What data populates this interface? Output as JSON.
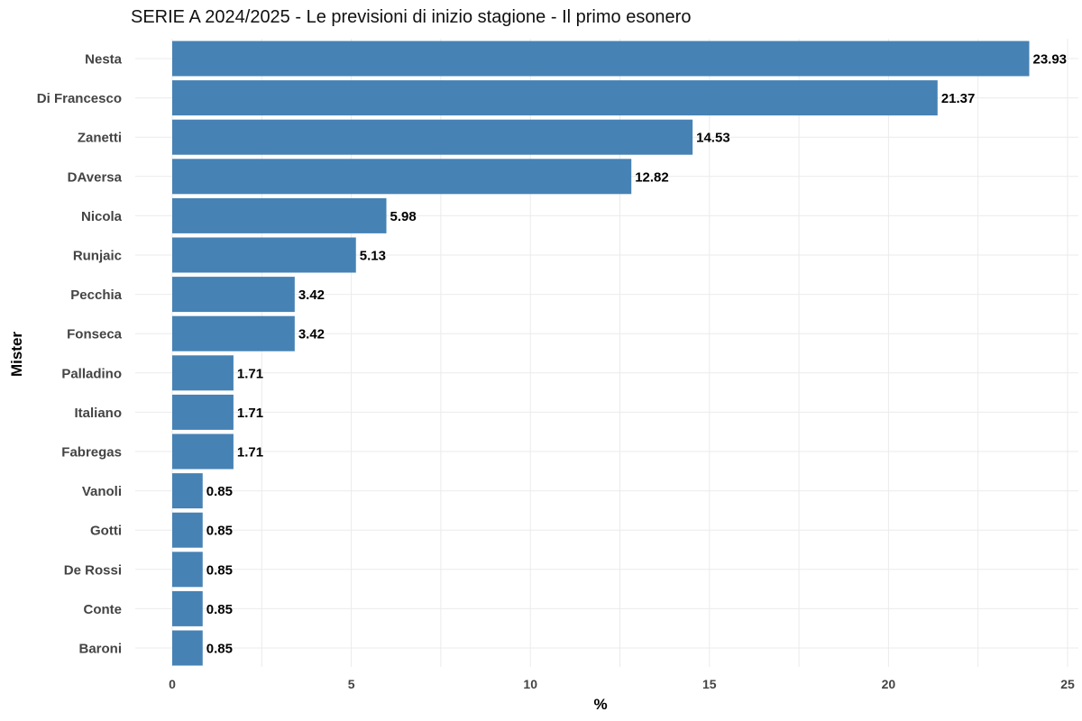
{
  "chart_data": {
    "type": "bar",
    "orientation": "horizontal",
    "title": "SERIE A 2024/2025 - Le previsioni di inizio stagione - Il primo esonero",
    "xlabel": "%",
    "ylabel": "Mister",
    "categories": [
      "Nesta",
      "Di Francesco",
      "Zanetti",
      "DAversa",
      "Nicola",
      "Runjaic",
      "Pecchia",
      "Fonseca",
      "Palladino",
      "Italiano",
      "Fabregas",
      "Vanoli",
      "Gotti",
      "De Rossi",
      "Conte",
      "Baroni"
    ],
    "values": [
      23.93,
      21.37,
      14.53,
      12.82,
      5.98,
      5.13,
      3.42,
      3.42,
      1.71,
      1.71,
      1.71,
      0.85,
      0.85,
      0.85,
      0.85,
      0.85
    ],
    "data_labels": [
      "23.93",
      "21.37",
      "14.53",
      "12.82",
      "5.98",
      "5.13",
      "3.42",
      "3.42",
      "1.71",
      "1.71",
      "1.71",
      "0.85",
      "0.85",
      "0.85",
      "0.85",
      "0.85"
    ],
    "xlim": [
      0,
      25
    ],
    "x_ticks": [
      0,
      5,
      10,
      15,
      20,
      25
    ],
    "x_tick_labels": [
      "0",
      "5",
      "10",
      "15",
      "20",
      "25"
    ],
    "grid": true,
    "bar_color": "#4682B4",
    "grid_color": "#ebebeb"
  }
}
